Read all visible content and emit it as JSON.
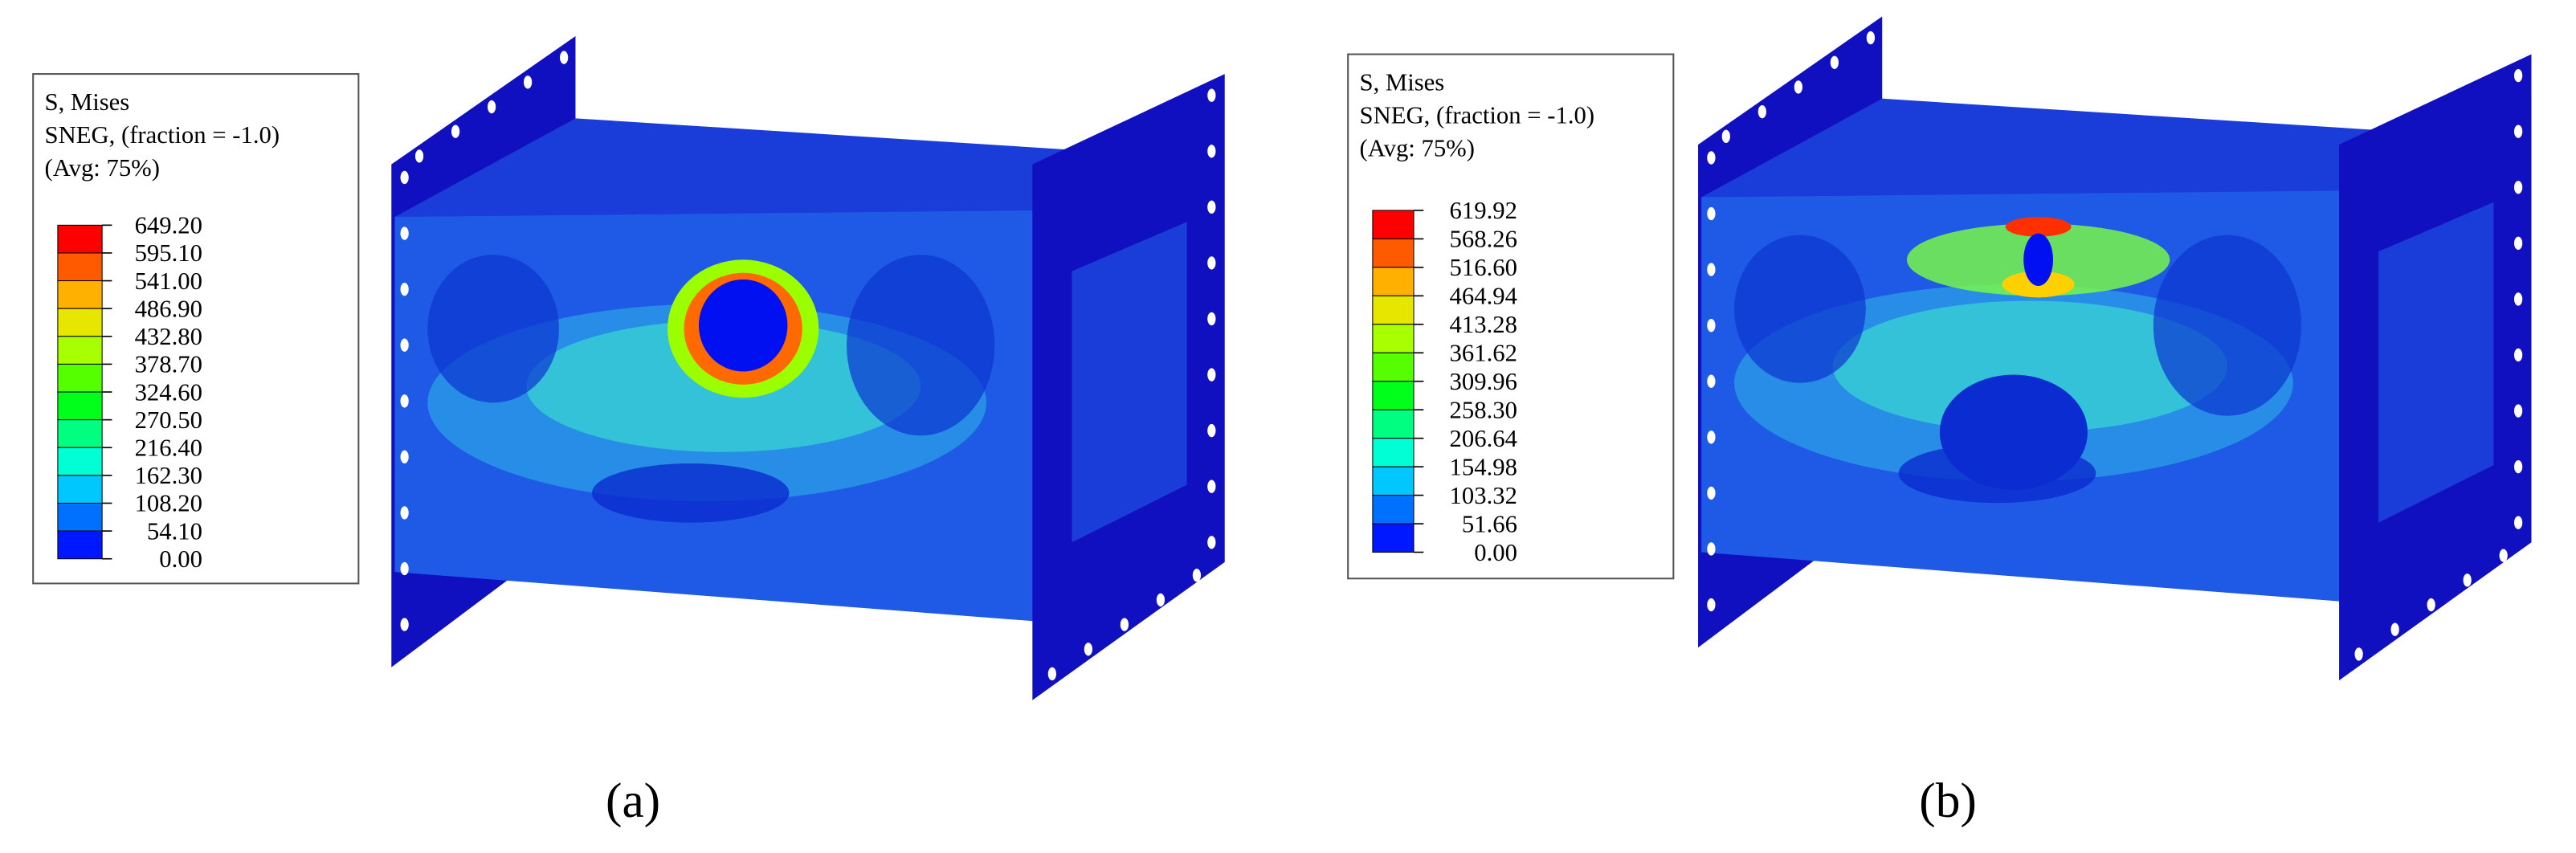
{
  "panels": [
    {
      "legend": {
        "title": "S, Mises",
        "subtitle": "SNEG, (fraction = -1.0)",
        "average": "(Avg: 75%)",
        "values": [
          "649.20",
          "595.10",
          "541.00",
          "486.90",
          "432.80",
          "378.70",
          "324.60",
          "270.50",
          "216.40",
          "162.30",
          "108.20",
          "54.10",
          "0.00"
        ]
      },
      "caption": "(a)"
    },
    {
      "legend": {
        "title": "S, Mises",
        "subtitle": "SNEG, (fraction = -1.0)",
        "average": "(Avg: 75%)",
        "values": [
          "619.92",
          "568.26",
          "516.60",
          "464.94",
          "413.28",
          "361.62",
          "309.96",
          "258.30",
          "206.64",
          "154.98",
          "103.32",
          "51.66",
          "0.00"
        ]
      },
      "caption": "(b)"
    }
  ]
}
